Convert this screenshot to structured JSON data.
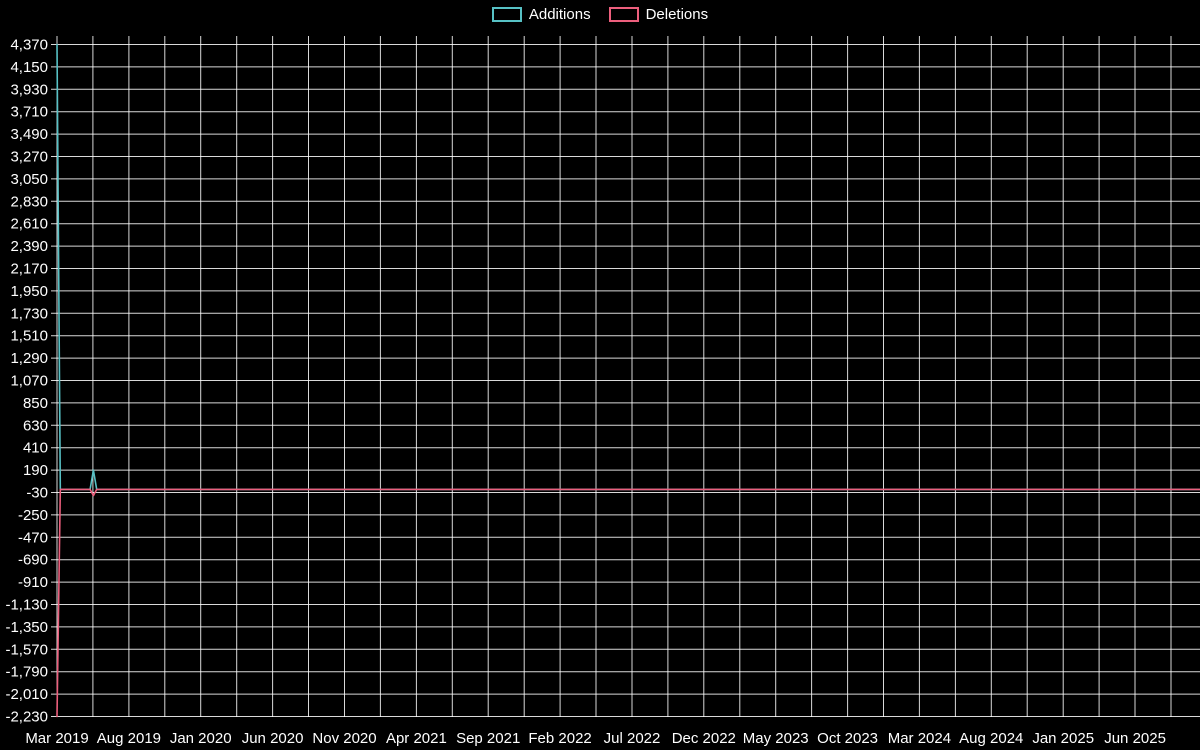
{
  "legend": {
    "additions": "Additions",
    "deletions": "Deletions"
  },
  "chart_data": {
    "type": "line",
    "title": "",
    "xlabel": "",
    "ylabel": "",
    "grid": true,
    "legend_position": "top-center",
    "background_color": "#000000",
    "grid_color": "#ffffff",
    "text_color": "#ffffff",
    "ylim": [
      -2230,
      4370
    ],
    "y_tick_step": 220,
    "y_tick_labels": [
      "4,370",
      "4,150",
      "3,930",
      "3,710",
      "3,490",
      "3,270",
      "3,050",
      "2,830",
      "2,610",
      "2,390",
      "2,170",
      "1,950",
      "1,730",
      "1,510",
      "1,290",
      "1,070",
      "850",
      "630",
      "410",
      "190",
      "-30",
      "-250",
      "-470",
      "-690",
      "-910",
      "-1,130",
      "-1,350",
      "-1,570",
      "-1,790",
      "-2,010",
      "-2,230"
    ],
    "x_tick_labels": [
      "Mar 2019",
      "Aug 2019",
      "Jan 2020",
      "Jun 2020",
      "Nov 2020",
      "Apr 2021",
      "Sep 2021",
      "Feb 2022",
      "Jul 2022",
      "Dec 2022",
      "May 2023",
      "Oct 2023",
      "Mar 2024",
      "Aug 2024",
      "Jan 2025",
      "Jun 2025"
    ],
    "x_months_per_label": 5,
    "x_unit": "weeks since Mar 2019",
    "weeks_total": 345,
    "series": [
      {
        "name": "Additions",
        "color": "#57c1c5",
        "baseline": 0,
        "points": {
          "0": 4370,
          "11": 190
        }
      },
      {
        "name": "Deletions",
        "color": "#ed5f7d",
        "baseline": 0,
        "points": {
          "0": -2230,
          "11": -60
        }
      }
    ]
  }
}
